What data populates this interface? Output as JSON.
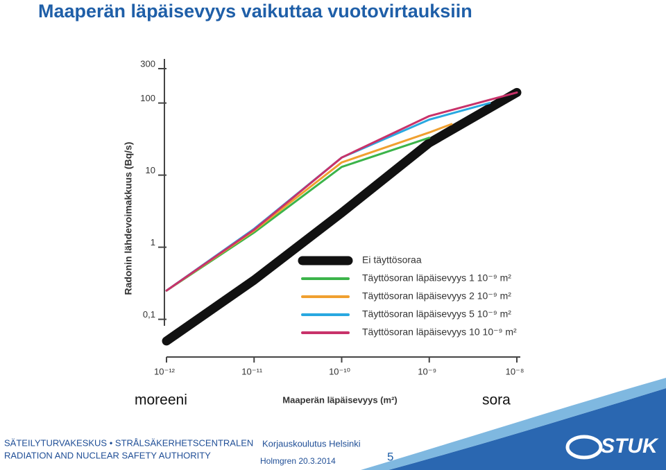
{
  "title": "Maaperän läpäisevyys vaikuttaa vuotovirtauksiin",
  "chart_data": {
    "type": "line",
    "y_label": "Radonin lähdevoimakkuus (Bq/s)",
    "x_label": "Maaperän läpäisevyys (m²)",
    "annotations": [
      "moreeni",
      "sora"
    ],
    "xscale": "log",
    "yscale": "log",
    "xlim": [
      1e-12,
      1e-08
    ],
    "ylim": [
      0.03,
      300
    ],
    "xticks": [
      {
        "value": 1e-12,
        "label": "10⁻¹²"
      },
      {
        "value": 1e-11,
        "label": "10⁻¹¹"
      },
      {
        "value": 1e-10,
        "label": "10⁻¹⁰"
      },
      {
        "value": 1e-09,
        "label": "10⁻⁹"
      },
      {
        "value": 1e-08,
        "label": "10⁻⁸"
      }
    ],
    "yticks": [
      {
        "value": 0.1,
        "label": "0,1"
      },
      1,
      10,
      100,
      300
    ],
    "series": [
      {
        "name": "Ei täyttösoraa",
        "color": "#111111",
        "x": [
          1e-12,
          1e-11,
          1e-10,
          1e-09,
          1e-08
        ],
        "values": [
          0.05,
          0.35,
          3,
          28,
          140
        ]
      },
      {
        "name": "Täyttösoran läpäisevyys 1 10⁻⁹ m²",
        "color": "#3cb44a",
        "x": [
          1e-12,
          1e-11,
          1e-10,
          1e-09
        ],
        "values": [
          0.25,
          1.6,
          13,
          33
        ]
      },
      {
        "name": "Täyttösoran läpäisevyys 2 10⁻⁹ m²",
        "color": "#f0a030",
        "x": [
          1e-12,
          1e-11,
          1e-10,
          1e-09,
          1.8e-09
        ],
        "values": [
          0.25,
          1.7,
          15,
          39,
          51
        ]
      },
      {
        "name": "Täyttösoran läpäisevyys 5 10⁻⁹ m²",
        "color": "#29a8e0",
        "x": [
          1e-12,
          1e-11,
          1e-10,
          1e-09,
          4.9e-09
        ],
        "values": [
          0.25,
          1.8,
          17.5,
          59,
          100
        ]
      },
      {
        "name": "Täyttösoran läpäisevyys 10 10⁻⁹ m²",
        "color": "#c8326a",
        "x": [
          1e-12,
          1e-11,
          1e-10,
          1e-09,
          1e-08
        ],
        "values": [
          0.25,
          1.75,
          17.5,
          66,
          140
        ]
      }
    ]
  },
  "footer": {
    "org_line1": "SÄTEILYTURVAKESKUS • STRÅLSÄKERHETSCENTRALEN",
    "org_line2": "RADIATION AND NUCLEAR SAFETY AUTHORITY",
    "event": "Korjauskoulutus Helsinki",
    "author_date": "Holmgren 20.3.2014",
    "page": "5",
    "logo": "STUK"
  }
}
